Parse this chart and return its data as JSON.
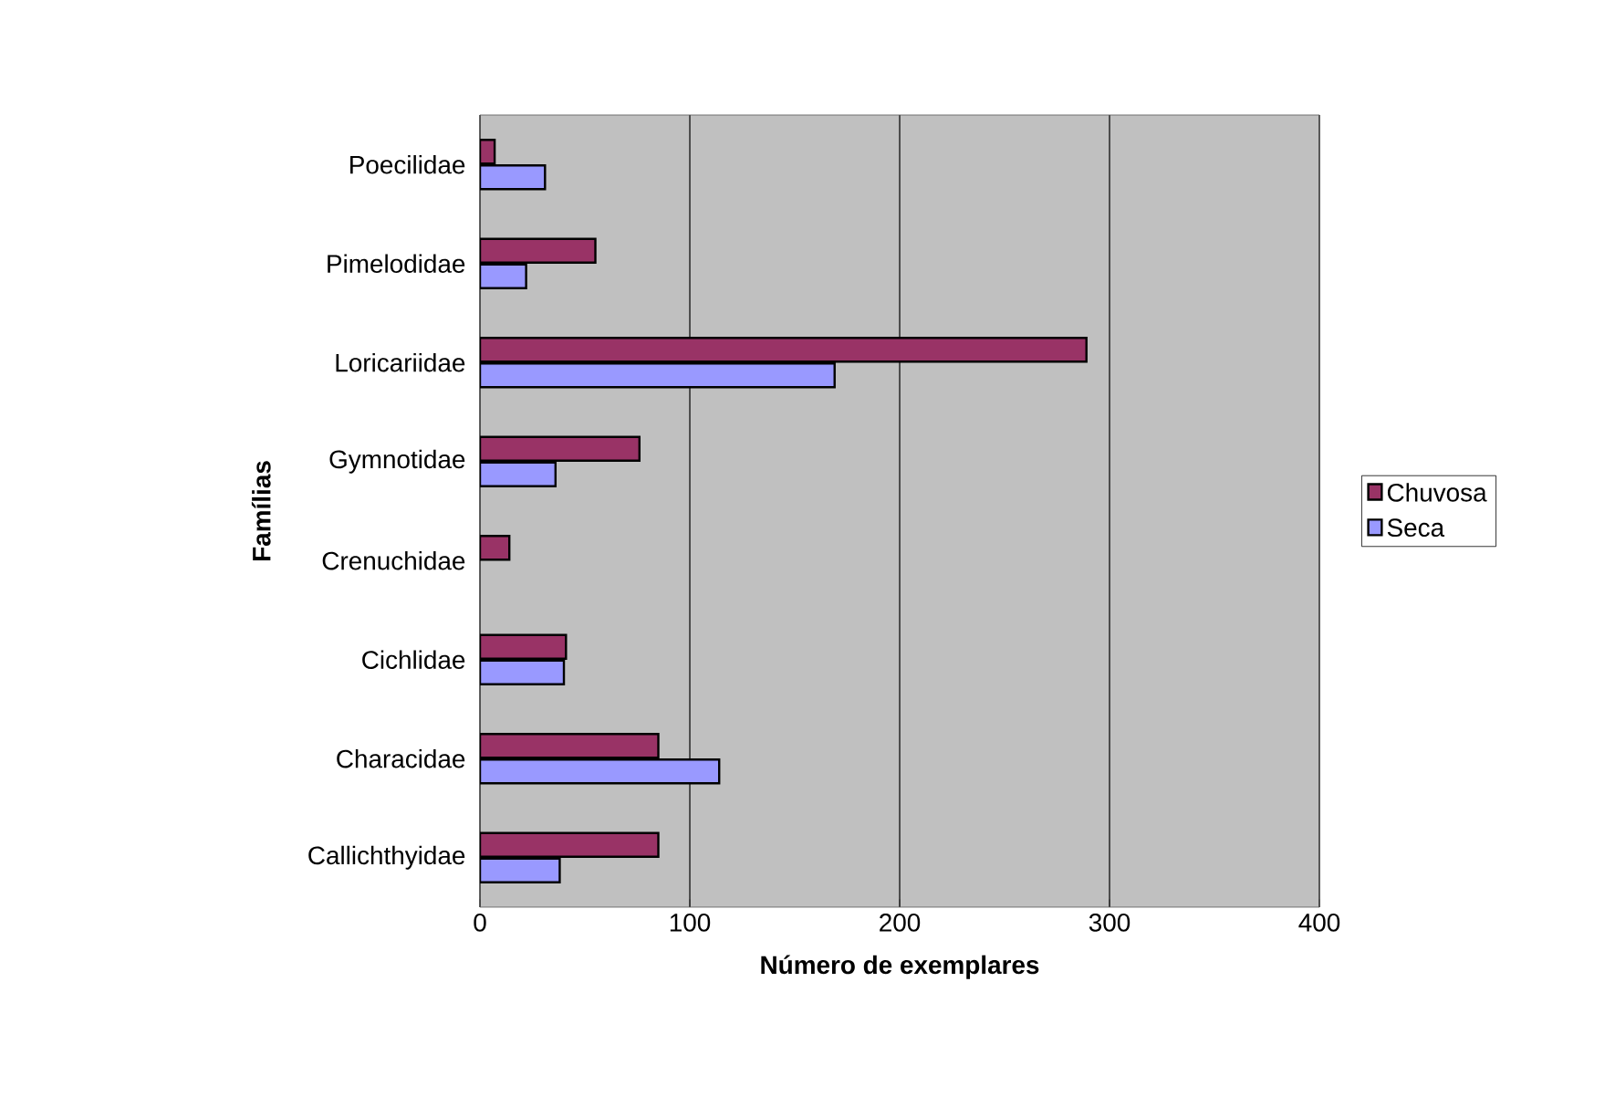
{
  "chart_data": {
    "type": "bar",
    "orientation": "horizontal",
    "xlabel": "Número de exemplares",
    "ylabel": "Famílias",
    "categories": [
      "Poecilidae",
      "Pimelodidae",
      "Loricariidae",
      "Gymnotidae",
      "Crenuchidae",
      "Cichlidae",
      "Characidae",
      "Callichthyidae"
    ],
    "series": [
      {
        "name": "Chuvosa",
        "color": "#993366",
        "values": [
          7,
          55,
          289,
          76,
          14,
          41,
          85,
          85
        ]
      },
      {
        "name": "Seca",
        "color": "#9999ff",
        "values": [
          31,
          22,
          169,
          36,
          null,
          40,
          114,
          38
        ]
      }
    ],
    "xlim": [
      0,
      400
    ],
    "xticks": [
      0,
      100,
      200,
      300,
      400
    ],
    "grid": "x",
    "legend": "right"
  }
}
